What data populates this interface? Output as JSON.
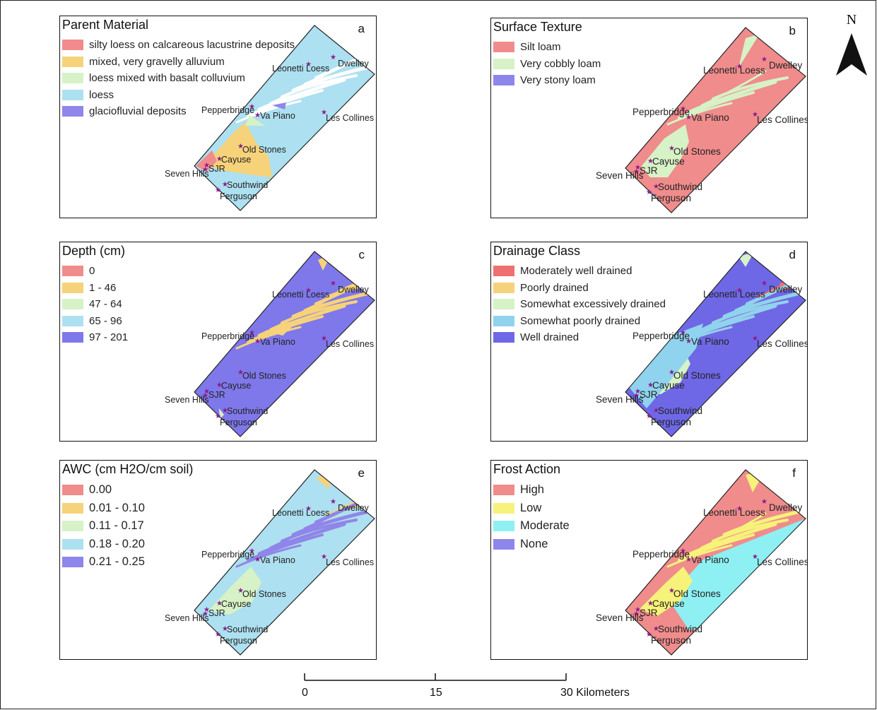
{
  "figure": {
    "north_label": "N",
    "scalebar": {
      "ticks": [
        "0",
        "15",
        "30 Kilometers"
      ]
    },
    "sites": [
      "Dwelley",
      "Leonetti Loess",
      "Pepperbridge",
      "Va Piano",
      "Les Collines",
      "Old Stones",
      "Cayuse",
      "SJR",
      "Seven Hills",
      "Southwind",
      "Ferguson"
    ]
  },
  "panels": [
    {
      "id": "a",
      "letter": "a",
      "title": "Parent Material",
      "legend": [
        {
          "label": "silty loess on calcareous lacustrine deposits",
          "color": "#f28b8b"
        },
        {
          "label": "mixed, very gravelly alluvium",
          "color": "#f6d27a"
        },
        {
          "label": "loess mixed with basalt colluvium",
          "color": "#d6f2c6"
        },
        {
          "label": "loess",
          "color": "#ade0f0"
        },
        {
          "label": "glaciofluvial deposits",
          "color": "#8e86ea"
        }
      ]
    },
    {
      "id": "b",
      "letter": "b",
      "title": "Surface Texture",
      "legend": [
        {
          "label": "Silt loam",
          "color": "#f08c8c"
        },
        {
          "label": "Very cobbly loam",
          "color": "#d6f2c6"
        },
        {
          "label": "Very stony loam",
          "color": "#8e86ea"
        }
      ]
    },
    {
      "id": "c",
      "letter": "c",
      "title": "Depth (cm)",
      "legend": [
        {
          "label": "0",
          "color": "#f08c8c"
        },
        {
          "label": "1 - 46",
          "color": "#f6d27a"
        },
        {
          "label": "47 - 64",
          "color": "#d6f2c6"
        },
        {
          "label": "65 - 96",
          "color": "#ade0f0"
        },
        {
          "label": "97 - 201",
          "color": "#7f78ea"
        }
      ]
    },
    {
      "id": "d",
      "letter": "d",
      "title": "Drainage Class",
      "legend": [
        {
          "label": "Moderately well drained",
          "color": "#f07070"
        },
        {
          "label": "Poorly drained",
          "color": "#f6d27a"
        },
        {
          "label": "Somewhat excessively drained",
          "color": "#d6f2c6"
        },
        {
          "label": "Somewhat poorly drained",
          "color": "#8fd3ee"
        },
        {
          "label": "Well drained",
          "color": "#6f68e6"
        }
      ]
    },
    {
      "id": "e",
      "letter": "e",
      "title": "AWC (cm H2O/cm soil)",
      "legend": [
        {
          "label": "0.00",
          "color": "#f08c8c"
        },
        {
          "label": "0.01 - 0.10",
          "color": "#f6d27a"
        },
        {
          "label": "0.11 - 0.17",
          "color": "#d6f2c6"
        },
        {
          "label": "0.18 - 0.20",
          "color": "#ade0f0"
        },
        {
          "label": "0.21 - 0.25",
          "color": "#8e86ea"
        }
      ]
    },
    {
      "id": "f",
      "letter": "f",
      "title": "Frost Action",
      "legend": [
        {
          "label": "High",
          "color": "#f08c8c"
        },
        {
          "label": "Low",
          "color": "#f6f27a"
        },
        {
          "label": "Moderate",
          "color": "#8ef0f2"
        },
        {
          "label": "None",
          "color": "#8e86ea"
        }
      ]
    }
  ]
}
